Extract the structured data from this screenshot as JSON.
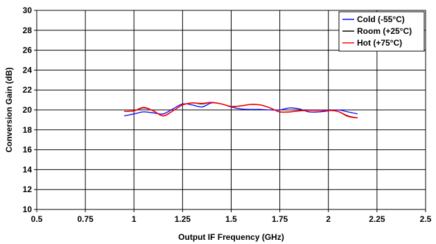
{
  "chart_data": {
    "type": "line",
    "title": "",
    "xlabel": "Output IF Frequency (GHz)",
    "ylabel": "Conversion Gain (dB)",
    "xlim": [
      0.5,
      2.5
    ],
    "ylim": [
      10,
      30
    ],
    "xticks": [
      "0.5",
      "0.75",
      "1",
      "1.25",
      "1.5",
      "1.75",
      "2",
      "2.25",
      "2.5"
    ],
    "yticks": [
      "10",
      "12",
      "14",
      "16",
      "18",
      "20",
      "22",
      "24",
      "26",
      "28",
      "30"
    ],
    "grid": true,
    "legend_position": "top-right",
    "series": [
      {
        "name": "Cold (-55°C)",
        "color": "#0000ff",
        "x": [
          0.95,
          1.0,
          1.05,
          1.1,
          1.15,
          1.2,
          1.25,
          1.3,
          1.35,
          1.4,
          1.45,
          1.5,
          1.55,
          1.6,
          1.65,
          1.7,
          1.75,
          1.8,
          1.85,
          1.9,
          1.95,
          2.0,
          2.05,
          2.1,
          2.15
        ],
        "y": [
          19.4,
          19.6,
          19.8,
          19.7,
          19.6,
          20.1,
          20.6,
          20.5,
          20.3,
          20.7,
          20.6,
          20.3,
          20.1,
          20.05,
          20.05,
          20.0,
          20.0,
          20.2,
          20.1,
          19.8,
          19.8,
          19.9,
          20.0,
          19.8,
          19.6
        ]
      },
      {
        "name": "Room (+25°C)",
        "color": "#000000",
        "x": [
          0.95,
          1.0,
          1.05,
          1.1,
          1.15,
          1.2,
          1.25,
          1.3,
          1.35,
          1.4,
          1.45,
          1.5,
          1.55,
          1.6,
          1.65,
          1.7,
          1.75,
          1.8,
          1.85,
          1.9,
          1.95,
          2.0,
          2.05,
          2.1,
          2.15
        ],
        "y": [
          19.85,
          19.9,
          20.2,
          19.9,
          19.4,
          19.9,
          20.5,
          20.7,
          20.6,
          20.75,
          20.6,
          20.35,
          20.4,
          20.55,
          20.5,
          20.2,
          19.8,
          19.8,
          19.9,
          19.95,
          19.95,
          19.95,
          19.85,
          19.4,
          19.2
        ]
      },
      {
        "name": "Hot (+75°C)",
        "color": "#ff0000",
        "x": [
          0.95,
          1.0,
          1.05,
          1.1,
          1.15,
          1.2,
          1.25,
          1.3,
          1.35,
          1.4,
          1.45,
          1.5,
          1.55,
          1.6,
          1.65,
          1.7,
          1.75,
          1.8,
          1.85,
          1.9,
          1.95,
          2.0,
          2.05,
          2.1,
          2.15
        ],
        "y": [
          19.85,
          19.9,
          20.25,
          19.9,
          19.4,
          19.9,
          20.5,
          20.7,
          20.65,
          20.75,
          20.6,
          20.35,
          20.4,
          20.55,
          20.5,
          20.2,
          19.8,
          19.8,
          19.9,
          19.95,
          19.95,
          19.95,
          19.85,
          19.35,
          19.2
        ]
      }
    ]
  }
}
